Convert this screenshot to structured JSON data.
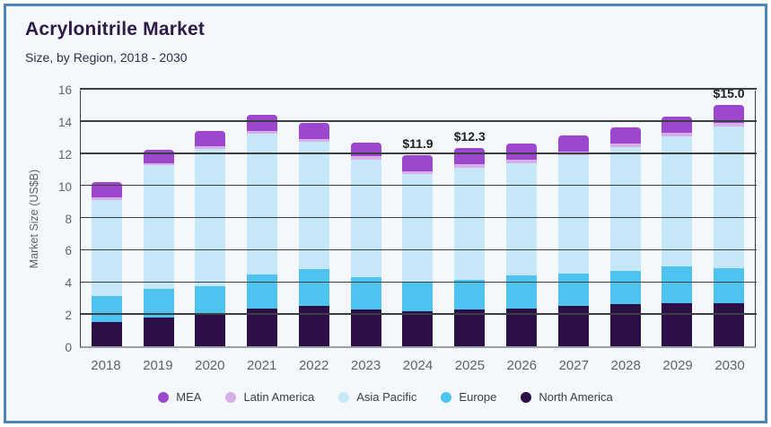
{
  "header": {
    "title": "Acrylonitrile Market",
    "subtitle": "Size, by Region, 2018 - 2030"
  },
  "chart_data": {
    "type": "bar",
    "stacked": true,
    "title": "Acrylonitrile Market",
    "subtitle": "Size, by Region, 2018 - 2030",
    "xlabel": "",
    "ylabel": "Market Size (US$B)",
    "ylim": [
      0,
      16
    ],
    "yticks": [
      0,
      2,
      4,
      6,
      8,
      10,
      12,
      14,
      16
    ],
    "grid": true,
    "legend_position": "bottom",
    "x": [
      "2018",
      "2019",
      "2020",
      "2021",
      "2022",
      "2023",
      "2024",
      "2025",
      "2026",
      "2027",
      "2028",
      "2029",
      "2030"
    ],
    "series": [
      {
        "name": "North America",
        "color": "#2d0f47",
        "values": [
          1.5,
          1.8,
          1.95,
          2.35,
          2.5,
          2.3,
          2.15,
          2.3,
          2.35,
          2.5,
          2.6,
          2.7,
          2.7
        ]
      },
      {
        "name": "Europe",
        "color": "#4ec3ef",
        "values": [
          1.6,
          1.75,
          1.8,
          2.1,
          2.3,
          2.0,
          1.85,
          1.8,
          2.05,
          2.0,
          2.1,
          2.25,
          2.15
        ]
      },
      {
        "name": "Asia Pacific",
        "color": "#c6e7f8",
        "values": [
          6.0,
          7.7,
          8.5,
          8.75,
          7.9,
          7.3,
          6.7,
          7.0,
          7.0,
          7.4,
          7.7,
          8.1,
          8.8
        ]
      },
      {
        "name": "Latin America",
        "color": "#d8aee9",
        "values": [
          0.15,
          0.15,
          0.2,
          0.2,
          0.2,
          0.2,
          0.2,
          0.2,
          0.2,
          0.2,
          0.2,
          0.2,
          0.25
        ]
      },
      {
        "name": "MEA",
        "color": "#9b48ce",
        "values": [
          0.95,
          0.8,
          0.95,
          1.0,
          1.0,
          0.85,
          1.0,
          1.0,
          1.0,
          1.0,
          1.0,
          1.05,
          1.1
        ]
      }
    ],
    "totals": [
      10.2,
      12.2,
      13.4,
      14.4,
      13.9,
      12.65,
      11.9,
      12.3,
      12.6,
      13.1,
      13.6,
      14.3,
      15.0
    ],
    "annotations": [
      {
        "x": "2024",
        "text": "$11.9"
      },
      {
        "x": "2025",
        "text": "$12.3"
      },
      {
        "x": "2030",
        "text": "$15.0"
      }
    ],
    "legend_order": [
      "MEA",
      "Latin America",
      "Asia Pacific",
      "Europe",
      "North America"
    ]
  },
  "style_colors": {
    "card_border": "#4e86ba",
    "card_background": "#f4f8fb",
    "title_color": "#2e1a47",
    "gridline_color": "#3a3f44",
    "axis_text_color": "#5f6368"
  }
}
